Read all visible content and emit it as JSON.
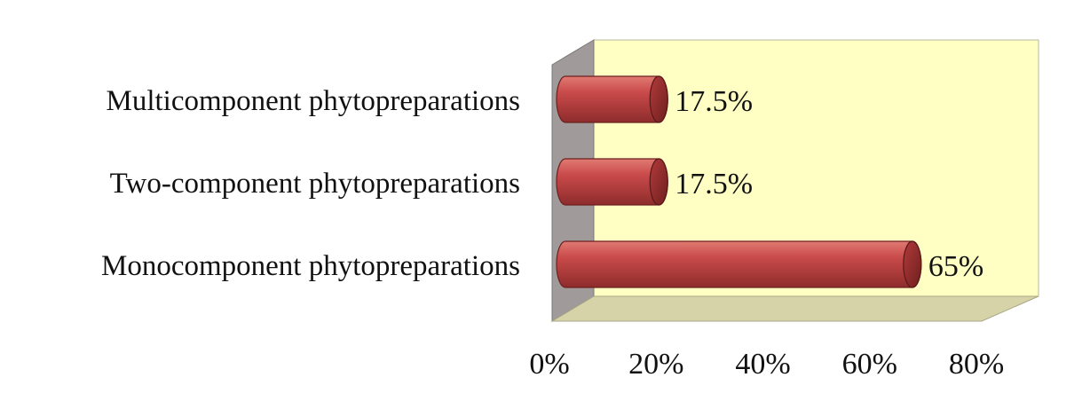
{
  "chart_data": {
    "type": "bar",
    "orientation": "horizontal",
    "categories": [
      "Multicomponent phytopreparations",
      "Two-component phytopreparations",
      "Monocomponent phytopreparations"
    ],
    "values": [
      17.5,
      17.5,
      65
    ],
    "value_labels": [
      "17.5%",
      "17.5%",
      "65%"
    ],
    "xlim": [
      0,
      80
    ],
    "x_ticks": [
      0,
      20,
      40,
      60,
      80
    ],
    "x_tick_labels": [
      "0%",
      "20%",
      "40%",
      "60%",
      "80%"
    ],
    "title": "",
    "xlabel": "",
    "ylabel": "",
    "grid": false,
    "legend": "none",
    "style": "3d-cylinder",
    "colors": {
      "bar": "#c94a4a",
      "bar_highlight": "#e07a72",
      "bar_shadow": "#8e2c2c",
      "back_wall": "#ffffc4",
      "side_wall": "#a09a9a",
      "floor": "#d6d3a8"
    }
  }
}
